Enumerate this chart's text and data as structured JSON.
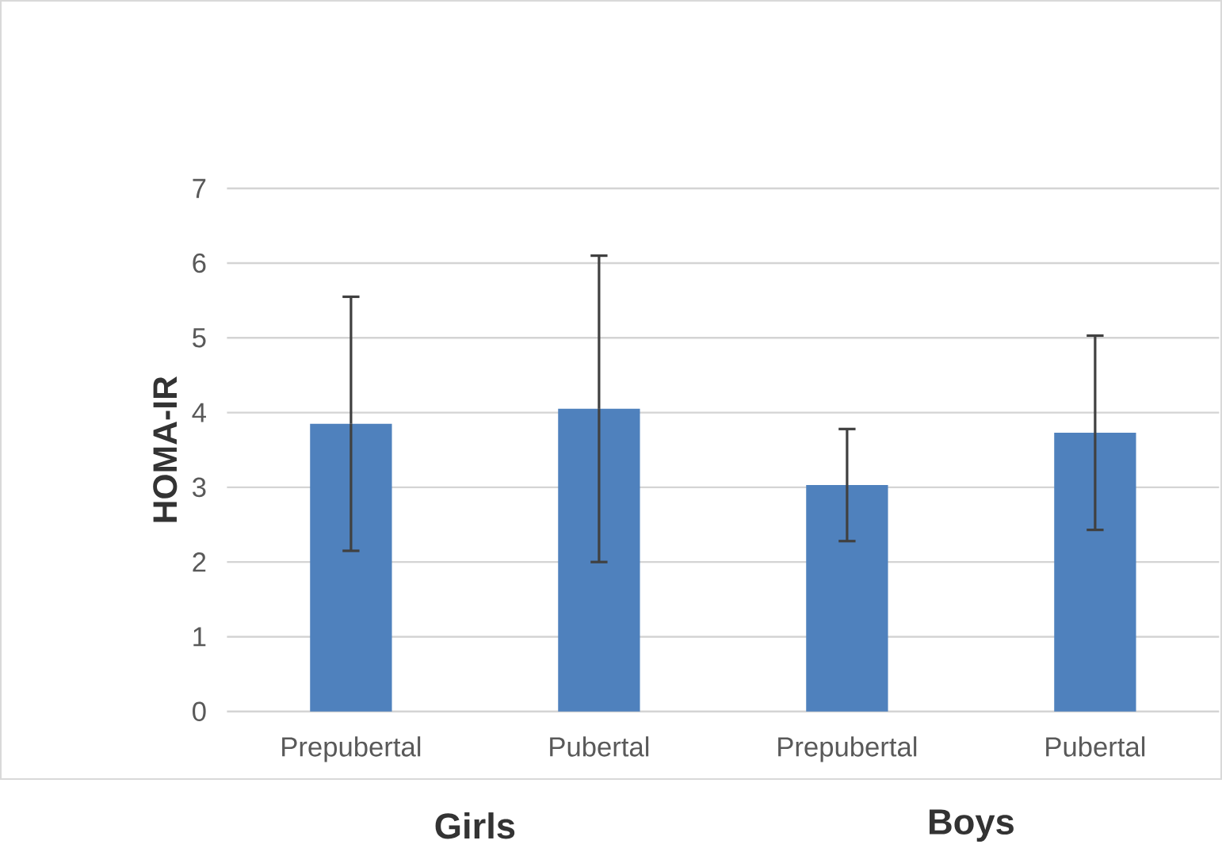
{
  "chart_data": {
    "type": "bar",
    "ylabel": "HOMA-IR",
    "categories": [
      "Prepubertal",
      "Pubertal",
      "Prepubertal",
      "Pubertal"
    ],
    "values": [
      3.85,
      4.05,
      3.03,
      3.73
    ],
    "errors": [
      1.7,
      2.05,
      0.75,
      1.3
    ],
    "color": "#4f81bd",
    "ylim": [
      0,
      7
    ],
    "yticks": [
      0,
      1,
      2,
      3,
      4,
      5,
      6,
      7
    ],
    "grid": "y",
    "annotations": [
      "Girls",
      "Boys"
    ]
  }
}
